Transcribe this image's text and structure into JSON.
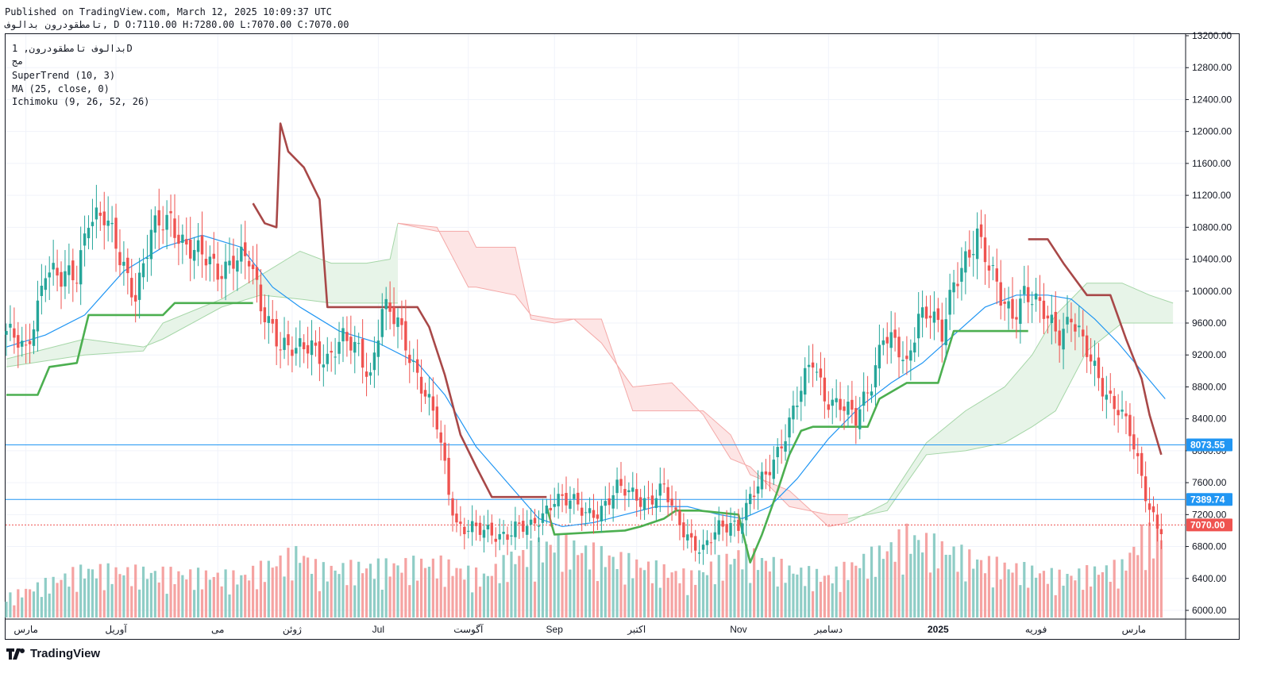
{
  "header": {
    "published": "Published on TradingView.com, March 12, 2025 10:09:37 UTC",
    "ohlc_line": "تامطقودرون بدالوف, D O:7110.00 H:7280.00 L:7070.00 C:7070.00"
  },
  "legend": {
    "symbol": "بدالوف تامطقودرون, 1D",
    "exchange": "مج",
    "supertrend": "SuperTrend (10, 3)",
    "ma": "MA (25, close, 0)",
    "ichimoku": "Ichimoku (9, 26, 52, 26)"
  },
  "footer": {
    "brand": "TradingView"
  },
  "colors": {
    "up": "#26a69a",
    "down": "#ef5350",
    "st_up": "#4caf50",
    "st_down": "#a84848",
    "ma": "#2196f3",
    "cloud_up": "#c8e6c9",
    "cloud_down": "#fbd4d4",
    "hline": "#2196f3"
  },
  "chart_data": {
    "type": "candlestick",
    "ylim": [
      5900,
      13300
    ],
    "y_ticks": [
      6000,
      6400,
      6800,
      7200,
      7600,
      8000,
      8400,
      8800,
      9200,
      9600,
      10000,
      10400,
      10800,
      11200,
      11600,
      12000,
      12400,
      12800,
      13200
    ],
    "y_tick_labels": [
      "6000.00",
      "6400.00",
      "6800.00",
      "7200.00",
      "7600.00",
      "8000.00",
      "8400.00",
      "8800.00",
      "9200.00",
      "9600.00",
      "10000.00",
      "10400.00",
      "10800.00",
      "11200.00",
      "11600.00",
      "12000.00",
      "12400.00",
      "12800.00",
      "13200.00"
    ],
    "x_labels": [
      "مارس",
      "آوریل",
      "می",
      "ژوئن",
      "Jul",
      "آگوست",
      "Sep",
      "اکتبر",
      "Nov",
      "دسامبر",
      "2025",
      "فوریه",
      "مارس"
    ],
    "x_label_bar": [
      5,
      28,
      54,
      73,
      95,
      118,
      140,
      161,
      187,
      210,
      238,
      263,
      288
    ],
    "horizontal_lines": [
      {
        "value": 8073.55,
        "label": "8073.55",
        "color": "#2196f3"
      },
      {
        "value": 7389.74,
        "label": "7389.74",
        "color": "#2196f3"
      },
      {
        "value": 7070.0,
        "label": "7070.00",
        "color": "#ef5350"
      }
    ],
    "close_path": [
      [
        0,
        9500
      ],
      [
        5,
        9200
      ],
      [
        8,
        9850
      ],
      [
        10,
        10350
      ],
      [
        14,
        10100
      ],
      [
        18,
        10200
      ],
      [
        21,
        11000
      ],
      [
        25,
        10900
      ],
      [
        29,
        10400
      ],
      [
        33,
        10000
      ],
      [
        37,
        10700
      ],
      [
        42,
        10900
      ],
      [
        46,
        10600
      ],
      [
        50,
        10400
      ],
      [
        54,
        10250
      ],
      [
        58,
        10450
      ],
      [
        62,
        10350
      ],
      [
        65,
        9800
      ],
      [
        68,
        9600
      ],
      [
        70,
        9350
      ],
      [
        74,
        9200
      ],
      [
        78,
        9350
      ],
      [
        82,
        9150
      ],
      [
        86,
        9350
      ],
      [
        90,
        9300
      ],
      [
        93,
        8950
      ],
      [
        96,
        9750
      ],
      [
        100,
        9600
      ],
      [
        103,
        9250
      ],
      [
        107,
        8700
      ],
      [
        110,
        8300
      ],
      [
        113,
        7500
      ],
      [
        115,
        7100
      ],
      [
        118,
        7050
      ],
      [
        122,
        6950
      ],
      [
        126,
        6950
      ],
      [
        130,
        7050
      ],
      [
        134,
        7000
      ],
      [
        137,
        7200
      ],
      [
        140,
        7450
      ],
      [
        144,
        7350
      ],
      [
        148,
        7200
      ],
      [
        152,
        7300
      ],
      [
        156,
        7500
      ],
      [
        160,
        7450
      ],
      [
        164,
        7400
      ],
      [
        168,
        7500
      ],
      [
        171,
        7150
      ],
      [
        175,
        6900
      ],
      [
        178,
        6750
      ],
      [
        182,
        7000
      ],
      [
        185,
        7100
      ],
      [
        187,
        7100
      ],
      [
        190,
        7400
      ],
      [
        194,
        7650
      ],
      [
        197,
        8000
      ],
      [
        200,
        8400
      ],
      [
        203,
        8750
      ],
      [
        206,
        9100
      ],
      [
        209,
        8700
      ],
      [
        213,
        8600
      ],
      [
        217,
        8350
      ],
      [
        221,
        8900
      ],
      [
        224,
        9500
      ],
      [
        227,
        9300
      ],
      [
        230,
        9000
      ],
      [
        233,
        9750
      ],
      [
        236,
        9800
      ],
      [
        239,
        9400
      ],
      [
        242,
        10050
      ],
      [
        245,
        10450
      ],
      [
        248,
        10750
      ],
      [
        251,
        10250
      ],
      [
        254,
        9900
      ],
      [
        257,
        9750
      ],
      [
        260,
        10000
      ],
      [
        263,
        9800
      ],
      [
        266,
        9650
      ],
      [
        269,
        9500
      ],
      [
        272,
        9700
      ],
      [
        275,
        9300
      ],
      [
        278,
        9000
      ],
      [
        281,
        8750
      ],
      [
        284,
        8550
      ],
      [
        287,
        8200
      ],
      [
        289,
        7800
      ],
      [
        290,
        7650
      ],
      [
        292,
        7300
      ],
      [
        294,
        7100
      ],
      [
        295,
        7070
      ]
    ],
    "volume": [
      [
        0,
        30
      ],
      [
        20,
        70
      ],
      [
        60,
        60
      ],
      [
        75,
        95
      ],
      [
        80,
        70
      ],
      [
        110,
        80
      ],
      [
        122,
        60
      ],
      [
        130,
        90
      ],
      [
        140,
        110
      ],
      [
        160,
        80
      ],
      [
        175,
        60
      ],
      [
        188,
        95
      ],
      [
        200,
        70
      ],
      [
        210,
        60
      ],
      [
        225,
        100
      ],
      [
        230,
        120
      ],
      [
        250,
        80
      ],
      [
        270,
        60
      ],
      [
        285,
        75
      ],
      [
        290,
        120
      ],
      [
        295,
        120
      ]
    ],
    "ma25": [
      [
        0,
        9300
      ],
      [
        10,
        9450
      ],
      [
        20,
        9700
      ],
      [
        30,
        10250
      ],
      [
        40,
        10550
      ],
      [
        50,
        10700
      ],
      [
        60,
        10550
      ],
      [
        68,
        10050
      ],
      [
        75,
        9800
      ],
      [
        85,
        9500
      ],
      [
        95,
        9350
      ],
      [
        105,
        9100
      ],
      [
        112,
        8700
      ],
      [
        120,
        8050
      ],
      [
        128,
        7600
      ],
      [
        136,
        7150
      ],
      [
        142,
        7050
      ],
      [
        150,
        7100
      ],
      [
        158,
        7200
      ],
      [
        166,
        7300
      ],
      [
        174,
        7300
      ],
      [
        182,
        7200
      ],
      [
        188,
        7150
      ],
      [
        195,
        7300
      ],
      [
        202,
        7650
      ],
      [
        210,
        8150
      ],
      [
        218,
        8550
      ],
      [
        226,
        8850
      ],
      [
        234,
        9100
      ],
      [
        242,
        9450
      ],
      [
        250,
        9800
      ],
      [
        258,
        9950
      ],
      [
        266,
        9950
      ],
      [
        272,
        9900
      ],
      [
        278,
        9650
      ],
      [
        284,
        9350
      ],
      [
        290,
        9000
      ],
      [
        296,
        8650
      ]
    ],
    "supertrend": [
      {
        "trend": "up",
        "points": [
          [
            0,
            8700
          ],
          [
            8,
            8700
          ],
          [
            11,
            9050
          ],
          [
            18,
            9100
          ],
          [
            21,
            9700
          ],
          [
            40,
            9700
          ],
          [
            43,
            9850
          ],
          [
            63,
            9850
          ]
        ]
      },
      {
        "trend": "down",
        "points": [
          [
            63,
            11100
          ],
          [
            66,
            10850
          ],
          [
            69,
            10800
          ],
          [
            70,
            12100
          ],
          [
            72,
            11750
          ],
          [
            76,
            11550
          ],
          [
            80,
            11150
          ],
          [
            82,
            9800
          ],
          [
            105,
            9800
          ],
          [
            108,
            9550
          ],
          [
            112,
            8950
          ],
          [
            116,
            8200
          ],
          [
            120,
            7800
          ],
          [
            124,
            7420
          ],
          [
            138,
            7420
          ]
        ]
      },
      {
        "trend": "up",
        "points": [
          [
            138,
            7300
          ],
          [
            140,
            6950
          ],
          [
            158,
            7000
          ],
          [
            162,
            7050
          ],
          [
            168,
            7150
          ],
          [
            171,
            7250
          ],
          [
            177,
            7250
          ],
          [
            187,
            7200
          ],
          [
            190,
            6600
          ],
          [
            193,
            6950
          ],
          [
            197,
            7500
          ],
          [
            200,
            7950
          ],
          [
            203,
            8250
          ],
          [
            206,
            8300
          ],
          [
            220,
            8300
          ],
          [
            223,
            8650
          ],
          [
            230,
            8850
          ],
          [
            238,
            8850
          ],
          [
            242,
            9500
          ],
          [
            258,
            9500
          ],
          [
            261,
            9500
          ]
        ]
      },
      {
        "trend": "down",
        "points": [
          [
            261,
            10650
          ],
          [
            266,
            10650
          ],
          [
            270,
            10350
          ],
          [
            276,
            9950
          ],
          [
            282,
            9950
          ],
          [
            286,
            9400
          ],
          [
            290,
            8900
          ],
          [
            292,
            8450
          ],
          [
            295,
            7950
          ]
        ]
      }
    ],
    "ichimoku_cloud": [
      {
        "trend": "up",
        "points_a": [
          [
            0,
            9050
          ],
          [
            20,
            9200
          ],
          [
            35,
            9250
          ],
          [
            40,
            9600
          ],
          [
            55,
            9900
          ],
          [
            65,
            10200
          ],
          [
            75,
            10500
          ],
          [
            83,
            10350
          ],
          [
            92,
            10350
          ],
          [
            98,
            10400
          ],
          [
            100,
            10850
          ]
        ],
        "points_b": [
          [
            0,
            9150
          ],
          [
            20,
            9400
          ],
          [
            35,
            9300
          ],
          [
            40,
            9400
          ],
          [
            55,
            9800
          ],
          [
            65,
            9950
          ],
          [
            75,
            9900
          ],
          [
            83,
            9850
          ],
          [
            92,
            9850
          ],
          [
            98,
            9850
          ],
          [
            100,
            9850
          ]
        ]
      },
      {
        "trend": "down",
        "points_a": [
          [
            100,
            10850
          ],
          [
            110,
            10750
          ],
          [
            118,
            10750
          ],
          [
            120,
            10550
          ],
          [
            130,
            10550
          ],
          [
            134,
            9650
          ],
          [
            140,
            9600
          ],
          [
            145,
            9650
          ],
          [
            152,
            9350
          ],
          [
            160,
            8800
          ],
          [
            170,
            8850
          ],
          [
            178,
            8450
          ],
          [
            185,
            7900
          ],
          [
            190,
            7800
          ],
          [
            200,
            7300
          ],
          [
            210,
            7200
          ],
          [
            215,
            7200
          ]
        ],
        "points_b": [
          [
            100,
            10850
          ],
          [
            110,
            10800
          ],
          [
            118,
            10050
          ],
          [
            120,
            10050
          ],
          [
            130,
            9950
          ],
          [
            134,
            9700
          ],
          [
            140,
            9650
          ],
          [
            145,
            9650
          ],
          [
            152,
            9650
          ],
          [
            160,
            8500
          ],
          [
            170,
            8500
          ],
          [
            178,
            8500
          ],
          [
            185,
            8200
          ],
          [
            190,
            7700
          ],
          [
            200,
            7500
          ],
          [
            210,
            7050
          ],
          [
            215,
            7100
          ]
        ]
      },
      {
        "trend": "up",
        "points_a": [
          [
            215,
            7100
          ],
          [
            225,
            7350
          ],
          [
            235,
            8100
          ],
          [
            245,
            8500
          ],
          [
            255,
            8800
          ],
          [
            262,
            9200
          ],
          [
            268,
            9700
          ],
          [
            276,
            10100
          ],
          [
            285,
            10100
          ],
          [
            292,
            9950
          ],
          [
            298,
            9850
          ]
        ],
        "points_b": [
          [
            215,
            7150
          ],
          [
            225,
            7250
          ],
          [
            235,
            7950
          ],
          [
            245,
            8000
          ],
          [
            255,
            8100
          ],
          [
            262,
            8300
          ],
          [
            268,
            8500
          ],
          [
            276,
            9250
          ],
          [
            285,
            9600
          ],
          [
            292,
            9600
          ],
          [
            298,
            9600
          ]
        ]
      }
    ]
  }
}
